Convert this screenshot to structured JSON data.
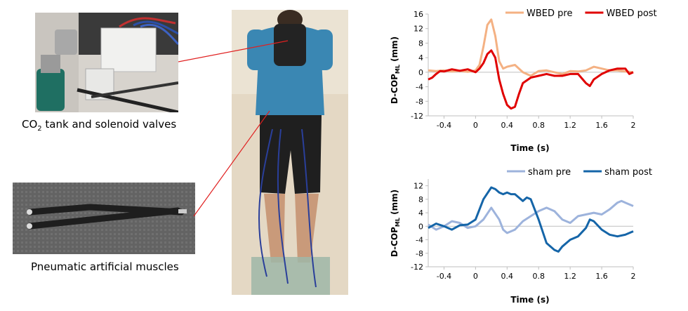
{
  "photos": {
    "valves_caption_prefix": "CO",
    "valves_caption_sub": "2",
    "valves_caption_suffix": " tank and solenoid valves",
    "muscles_caption": "Pneumatic artificial muscles"
  },
  "charts": {
    "top": {
      "type": "line",
      "xlabel": "Time (s)",
      "ylabel_main": "D-COP",
      "ylabel_sub": "ML",
      "ylabel_unit": " (mm)",
      "xlim": [
        -0.6,
        2.0
      ],
      "ylim": [
        -12,
        16
      ],
      "xticks": [
        "-0.4",
        "0",
        "0.4",
        "0.8",
        "1.2",
        "1.6",
        "2"
      ],
      "xtick_values": [
        -0.4,
        0,
        0.4,
        0.8,
        1.2,
        1.6,
        2.0
      ],
      "yticks": [
        "16",
        "12",
        "8",
        "4",
        "0",
        "-4",
        "-8",
        "-12"
      ],
      "ytick_values": [
        16,
        12,
        8,
        4,
        0,
        -4,
        -8,
        -12
      ],
      "legend_position": "top",
      "series": [
        {
          "name": "WBED pre",
          "color": "#F4B183",
          "x": [
            -0.6,
            -0.5,
            -0.4,
            -0.3,
            -0.2,
            -0.1,
            0,
            0.05,
            0.1,
            0.15,
            0.2,
            0.25,
            0.3,
            0.35,
            0.4,
            0.5,
            0.6,
            0.7,
            0.8,
            0.9,
            1.0,
            1.1,
            1.2,
            1.3,
            1.4,
            1.5,
            1.6,
            1.7,
            1.8,
            1.9,
            2.0
          ],
          "y": [
            0.5,
            0.3,
            0.5,
            0.2,
            0.4,
            0.1,
            0.5,
            2,
            7,
            13,
            14.5,
            10,
            3,
            1,
            1.5,
            2,
            0,
            -1,
            0.3,
            0.5,
            0,
            -0.5,
            0.3,
            0.2,
            0.5,
            1.5,
            1,
            0.5,
            0.5,
            0.2,
            0
          ]
        },
        {
          "name": "WBED post",
          "color": "#E00000",
          "x": [
            -0.6,
            -0.55,
            -0.5,
            -0.45,
            -0.4,
            -0.3,
            -0.2,
            -0.1,
            0,
            0.05,
            0.1,
            0.15,
            0.2,
            0.25,
            0.3,
            0.35,
            0.4,
            0.45,
            0.5,
            0.55,
            0.6,
            0.7,
            0.8,
            0.9,
            1.0,
            1.1,
            1.2,
            1.3,
            1.4,
            1.45,
            1.5,
            1.6,
            1.7,
            1.8,
            1.9,
            1.95,
            2.0
          ],
          "y": [
            -2,
            -1.5,
            -0.5,
            0.3,
            0.2,
            0.8,
            0.4,
            0.8,
            0,
            1,
            2.5,
            5,
            6,
            4,
            -2,
            -6,
            -9,
            -10,
            -9.5,
            -6,
            -3,
            -1.5,
            -1,
            -0.5,
            -1,
            -1,
            -0.5,
            -0.5,
            -3,
            -3.8,
            -2,
            -0.5,
            0.5,
            1,
            1,
            -0.5,
            0
          ]
        }
      ]
    },
    "bottom": {
      "type": "line",
      "xlabel": "Time (s)",
      "ylabel_main": "D-COP",
      "ylabel_sub": "ML",
      "ylabel_unit": " (mm)",
      "xlim": [
        -0.6,
        2.0
      ],
      "ylim": [
        -12,
        14
      ],
      "xticks": [
        "-0.4",
        "0",
        "0.4",
        "0.8",
        "1.2",
        "1.6",
        "2"
      ],
      "xtick_values": [
        -0.4,
        0,
        0.4,
        0.8,
        1.2,
        1.6,
        2.0
      ],
      "yticks": [
        "12",
        "8",
        "4",
        "0",
        "-4",
        "-8",
        "-12"
      ],
      "ytick_values": [
        12,
        8,
        4,
        0,
        -4,
        -8,
        -12
      ],
      "legend_position": "top",
      "series": [
        {
          "name": "sham pre",
          "color": "#9DB3DC",
          "x": [
            -0.6,
            -0.5,
            -0.4,
            -0.3,
            -0.2,
            -0.1,
            0,
            0.1,
            0.2,
            0.3,
            0.35,
            0.4,
            0.45,
            0.5,
            0.6,
            0.7,
            0.8,
            0.9,
            1.0,
            1.1,
            1.2,
            1.3,
            1.4,
            1.5,
            1.6,
            1.7,
            1.8,
            1.85,
            1.9,
            2.0
          ],
          "y": [
            0.5,
            -1,
            0,
            1.5,
            1,
            -0.5,
            0,
            2,
            5.5,
            2,
            -1,
            -2,
            -1.5,
            -1,
            1.5,
            3,
            4.5,
            5.5,
            4.5,
            2,
            1,
            3,
            3.5,
            4,
            3.5,
            5,
            7,
            7.5,
            7,
            6
          ]
        },
        {
          "name": "sham post",
          "color": "#1565A8",
          "x": [
            -0.6,
            -0.5,
            -0.4,
            -0.3,
            -0.2,
            -0.1,
            0,
            0.1,
            0.2,
            0.25,
            0.3,
            0.35,
            0.4,
            0.45,
            0.5,
            0.6,
            0.65,
            0.7,
            0.8,
            0.9,
            1.0,
            1.05,
            1.1,
            1.2,
            1.3,
            1.4,
            1.45,
            1.5,
            1.6,
            1.7,
            1.8,
            1.9,
            2.0
          ],
          "y": [
            -0.5,
            0.8,
            0,
            -1,
            0.3,
            0.5,
            2,
            8,
            11.5,
            11,
            10,
            9.5,
            10,
            9.5,
            9.5,
            7.5,
            8.5,
            8,
            2,
            -5,
            -7,
            -7.5,
            -6,
            -4,
            -3,
            -0.5,
            2,
            1.5,
            -1,
            -2.5,
            -3,
            -2.5,
            -1.5
          ]
        }
      ]
    }
  }
}
